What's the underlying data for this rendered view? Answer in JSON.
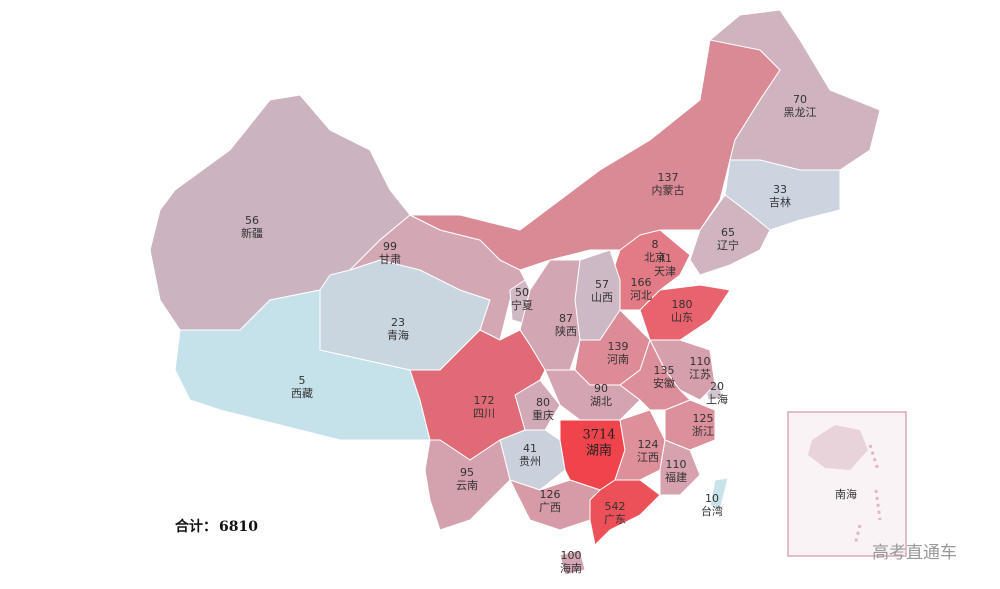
{
  "chart_data": {
    "type": "map",
    "regions": [
      {
        "name": "新疆",
        "value": 56,
        "color": "#cbb3c0"
      },
      {
        "name": "西藏",
        "value": 5,
        "color": "#c5e2ea"
      },
      {
        "name": "青海",
        "value": 23,
        "color": "#c9d6df"
      },
      {
        "name": "甘肃",
        "value": 99,
        "color": "#d3a7b4"
      },
      {
        "name": "内蒙古",
        "value": 137,
        "color": "#da8a95"
      },
      {
        "name": "黑龙江",
        "value": 70,
        "color": "#cfb4c0"
      },
      {
        "name": "吉林",
        "value": 33,
        "color": "#cbd4df"
      },
      {
        "name": "辽宁",
        "value": 65,
        "color": "#d0b5c1"
      },
      {
        "name": "北京",
        "value": 8,
        "color": "#d4dde6"
      },
      {
        "name": "天津",
        "value": 41,
        "color": "#d5c6d0"
      },
      {
        "name": "河北",
        "value": 166,
        "color": "#e27b86"
      },
      {
        "name": "山西",
        "value": 57,
        "color": "#cdb8c5"
      },
      {
        "name": "山东",
        "value": 180,
        "color": "#e8636d"
      },
      {
        "name": "宁夏",
        "value": 50,
        "color": "#d0b8c4"
      },
      {
        "name": "陕西",
        "value": 87,
        "color": "#d3a6b4"
      },
      {
        "name": "河南",
        "value": 139,
        "color": "#dd8b97"
      },
      {
        "name": "湖北",
        "value": 90,
        "color": "#d5a4b2"
      },
      {
        "name": "重庆",
        "value": 80,
        "color": "#d2a9b6"
      },
      {
        "name": "四川",
        "value": 172,
        "color": "#e06b77"
      },
      {
        "name": "贵州",
        "value": 41,
        "color": "#cbd1dc"
      },
      {
        "name": "云南",
        "value": 95,
        "color": "#d4a1ae"
      },
      {
        "name": "湖南",
        "value": 3714,
        "color": "#f0444c"
      },
      {
        "name": "广西",
        "value": 126,
        "color": "#d79aa7"
      },
      {
        "name": "广东",
        "value": 542,
        "color": "#ec5058"
      },
      {
        "name": "海南",
        "value": 100,
        "color": "#d4a6b3"
      },
      {
        "name": "江西",
        "value": 124,
        "color": "#dd8f9a"
      },
      {
        "name": "福建",
        "value": 110,
        "color": "#d6a2ae"
      },
      {
        "name": "浙江",
        "value": 125,
        "color": "#dc909b"
      },
      {
        "name": "上海",
        "value": 20,
        "color": "#d3c4cf"
      },
      {
        "name": "江苏",
        "value": 110,
        "color": "#d69fac"
      },
      {
        "name": "安徽",
        "value": 135,
        "color": "#dc8f9a"
      },
      {
        "name": "台湾",
        "value": 10,
        "color": "#c8e2ea"
      }
    ],
    "total": {
      "label": "合计：",
      "value": 6810
    },
    "inset_label": "南海",
    "watermark": "高考直通车"
  }
}
